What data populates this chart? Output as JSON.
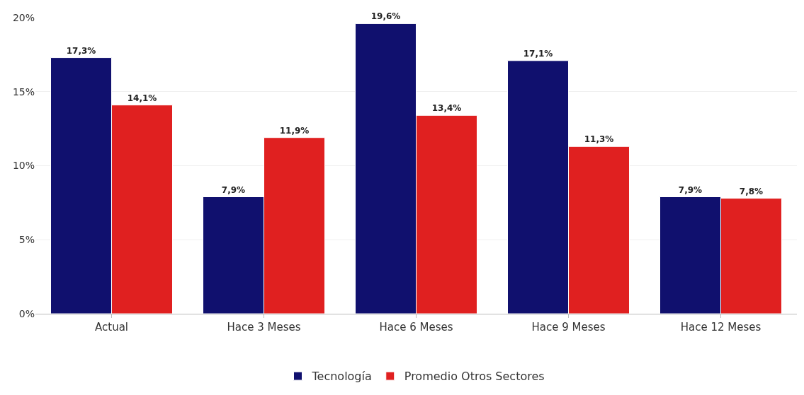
{
  "chart_data": {
    "type": "bar",
    "categories": [
      "Actual",
      "Hace 3 Meses",
      "Hace 6 Meses",
      "Hace 9 Meses",
      "Hace 12 Meses"
    ],
    "series": [
      {
        "name": "Tecnología",
        "color": "#10106e",
        "values": [
          17.3,
          7.9,
          19.6,
          17.1,
          7.9
        ],
        "value_labels": [
          "17,3%",
          "7,9%",
          "19,6%",
          "17,1%",
          "7,9%"
        ]
      },
      {
        "name": "Promedio Otros Sectores",
        "color": "#e02020",
        "values": [
          14.1,
          11.9,
          13.4,
          11.3,
          7.8
        ],
        "value_labels": [
          "14,1%",
          "11,9%",
          "13,4%",
          "11,3%",
          "7,8%"
        ]
      }
    ],
    "ylim": [
      0,
      20
    ],
    "yticks": [
      {
        "value": 0,
        "label": "0%"
      },
      {
        "value": 5,
        "label": "5%"
      },
      {
        "value": 10,
        "label": "10%"
      },
      {
        "value": 15,
        "label": "15%"
      },
      {
        "value": 20,
        "label": "20%"
      }
    ],
    "grid": "y",
    "legend": "bottom"
  }
}
